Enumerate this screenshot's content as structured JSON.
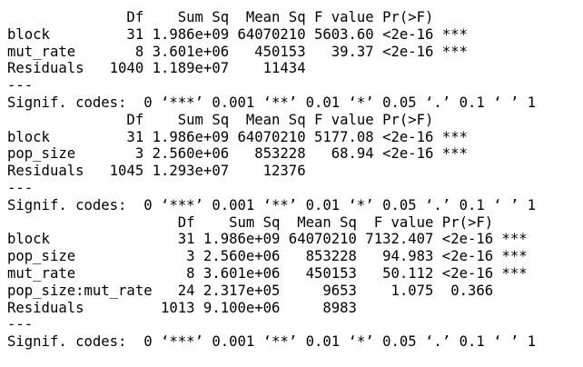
{
  "console": {
    "lines": [
      "              Df    Sum Sq  Mean Sq F value Pr(>F)    ",
      "block         31 1.986e+09 64070210 5603.60 <2e-16 ***",
      "mut_rate       8 3.601e+06   450153   39.37 <2e-16 ***",
      "Residuals   1040 1.189e+07    11434                   ",
      "---",
      "Signif. codes:  0 ‘***’ 0.001 ‘**’ 0.01 ‘*’ 0.05 ‘.’ 0.1 ‘ ’ 1",
      "              Df    Sum Sq  Mean Sq F value Pr(>F)    ",
      "block         31 1.986e+09 64070210 5177.08 <2e-16 ***",
      "pop_size       3 2.560e+06   853228   68.94 <2e-16 ***",
      "Residuals   1045 1.293e+07    12376                   ",
      "---",
      "Signif. codes:  0 ‘***’ 0.001 ‘**’ 0.01 ‘*’ 0.05 ‘.’ 0.1 ‘ ’ 1",
      "                    Df    Sum Sq  Mean Sq  F value Pr(>F)    ",
      "block               31 1.986e+09 64070210 7132.407 <2e-16 ***",
      "pop_size             3 2.560e+06   853228   94.983 <2e-16 ***",
      "mut_rate             8 3.601e+06   450153   50.112 <2e-16 ***",
      "pop_size:mut_rate   24 2.317e+05     9653    1.075  0.366    ",
      "Residuals         1013 9.100e+06     8983                    ",
      "---",
      "Signif. codes:  0 ‘***’ 0.001 ‘**’ 0.01 ‘*’ 0.05 ‘.’ 0.1 ‘ ’ 1"
    ]
  }
}
